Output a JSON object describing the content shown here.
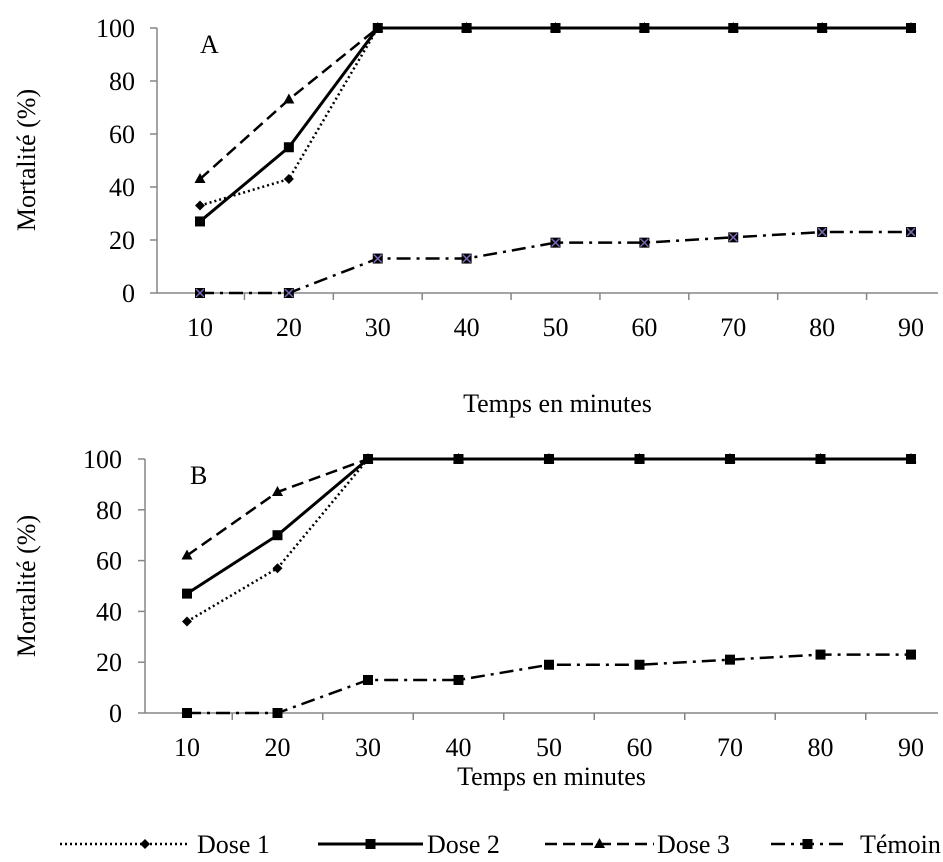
{
  "chart_data": [
    {
      "type": "line",
      "panel_label": "A",
      "xlabel": "Temps en minutes",
      "ylabel": "Mortalité (%)",
      "x": [
        10,
        20,
        30,
        40,
        50,
        60,
        70,
        80,
        90
      ],
      "ylim": [
        0,
        100
      ],
      "yticks": [
        0,
        20,
        40,
        60,
        80,
        100
      ],
      "grid": false,
      "series": [
        {
          "name": "Dose 1",
          "style": "dotted",
          "marker": "diamond",
          "values": [
            33,
            43,
            100,
            100,
            100,
            100,
            100,
            100,
            100
          ]
        },
        {
          "name": "Dose 2",
          "style": "solid",
          "marker": "square",
          "values": [
            27,
            55,
            100,
            100,
            100,
            100,
            100,
            100,
            100
          ]
        },
        {
          "name": "Dose 3",
          "style": "dashed",
          "marker": "triangle",
          "values": [
            43,
            73,
            100,
            100,
            100,
            100,
            100,
            100,
            100
          ]
        },
        {
          "name": "Témoin",
          "style": "dash-dot",
          "marker": "square-x",
          "values": [
            0,
            0,
            13,
            13,
            19,
            19,
            21,
            23,
            23
          ]
        }
      ]
    },
    {
      "type": "line",
      "panel_label": "B",
      "xlabel": "Temps en minutes",
      "ylabel": "Mortalité (%)",
      "x": [
        10,
        20,
        30,
        40,
        50,
        60,
        70,
        80,
        90
      ],
      "ylim": [
        0,
        100
      ],
      "yticks": [
        0,
        20,
        40,
        60,
        80,
        100
      ],
      "grid": false,
      "series": [
        {
          "name": "Dose 1",
          "style": "dotted",
          "marker": "diamond",
          "values": [
            36,
            57,
            100,
            100,
            100,
            100,
            100,
            100,
            100
          ]
        },
        {
          "name": "Dose 2",
          "style": "solid",
          "marker": "square",
          "values": [
            47,
            70,
            100,
            100,
            100,
            100,
            100,
            100,
            100
          ]
        },
        {
          "name": "Dose 3",
          "style": "dashed",
          "marker": "triangle",
          "values": [
            62,
            87,
            100,
            100,
            100,
            100,
            100,
            100,
            100
          ]
        },
        {
          "name": "Témoin",
          "style": "dash-dot",
          "marker": "square",
          "values": [
            0,
            0,
            13,
            13,
            19,
            19,
            21,
            23,
            23
          ]
        }
      ]
    }
  ],
  "legend": {
    "placement": "bottom",
    "entries": [
      {
        "label": "Dose 1",
        "style": "dotted",
        "marker": "diamond"
      },
      {
        "label": "Dose 2",
        "style": "solid",
        "marker": "square"
      },
      {
        "label": "Dose 3",
        "style": "dashed",
        "marker": "triangle"
      },
      {
        "label": "Témoin",
        "style": "dash-dot",
        "marker": "square"
      }
    ]
  },
  "colors": {
    "line": "#000000",
    "axis": "#868686",
    "marker_x": "#7b68b5"
  }
}
